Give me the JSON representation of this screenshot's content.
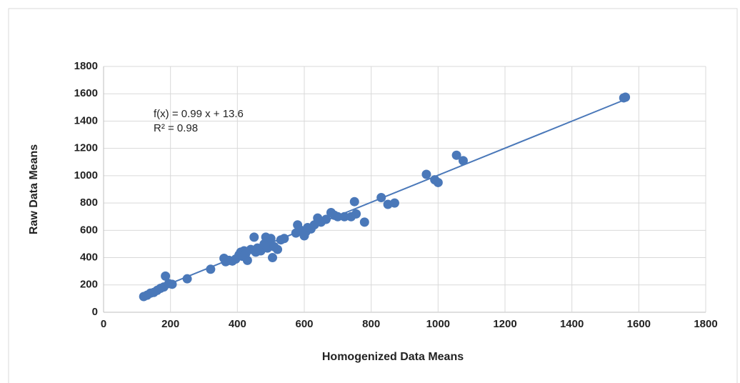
{
  "chart_data": {
    "type": "scatter",
    "x_label": "Homogenized Data Means",
    "y_label": "Raw Data Means",
    "annotations": [
      "f(x) = 0.99 x + 13.6",
      "R² = 0.98"
    ],
    "color": "#4a78b9",
    "grid": true,
    "xlim": [
      0,
      1800
    ],
    "xticks": [
      0,
      200,
      400,
      600,
      800,
      1000,
      1200,
      1400,
      1600,
      1800
    ],
    "ylim": [
      0,
      1800
    ],
    "yticks": [
      0,
      200,
      400,
      600,
      800,
      1000,
      1200,
      1400,
      1600,
      1800
    ],
    "x": [
      120,
      130,
      140,
      150,
      160,
      170,
      180,
      185,
      195,
      205,
      250,
      320,
      360,
      365,
      375,
      385,
      395,
      405,
      410,
      415,
      420,
      425,
      430,
      440,
      450,
      455,
      460,
      470,
      480,
      485,
      490,
      495,
      500,
      505,
      510,
      520,
      530,
      540,
      575,
      580,
      590,
      600,
      605,
      610,
      620,
      630,
      640,
      650,
      665,
      680,
      690,
      700,
      720,
      740,
      750,
      755,
      780,
      830,
      850,
      870,
      965,
      990,
      1000,
      1055,
      1075,
      1555,
      1560
    ],
    "values": [
      115,
      125,
      140,
      145,
      160,
      175,
      185,
      265,
      210,
      205,
      245,
      315,
      395,
      370,
      380,
      375,
      390,
      420,
      440,
      410,
      450,
      430,
      380,
      460,
      550,
      440,
      470,
      450,
      500,
      550,
      470,
      520,
      540,
      400,
      480,
      460,
      530,
      540,
      580,
      640,
      600,
      560,
      590,
      620,
      610,
      640,
      690,
      660,
      680,
      730,
      710,
      700,
      700,
      700,
      810,
      720,
      660,
      840,
      790,
      800,
      1010,
      970,
      950,
      1150,
      1110,
      1570,
      1575
    ],
    "trendline": {
      "x": [
        120,
        1560
      ],
      "values": [
        132,
        1558
      ]
    }
  }
}
